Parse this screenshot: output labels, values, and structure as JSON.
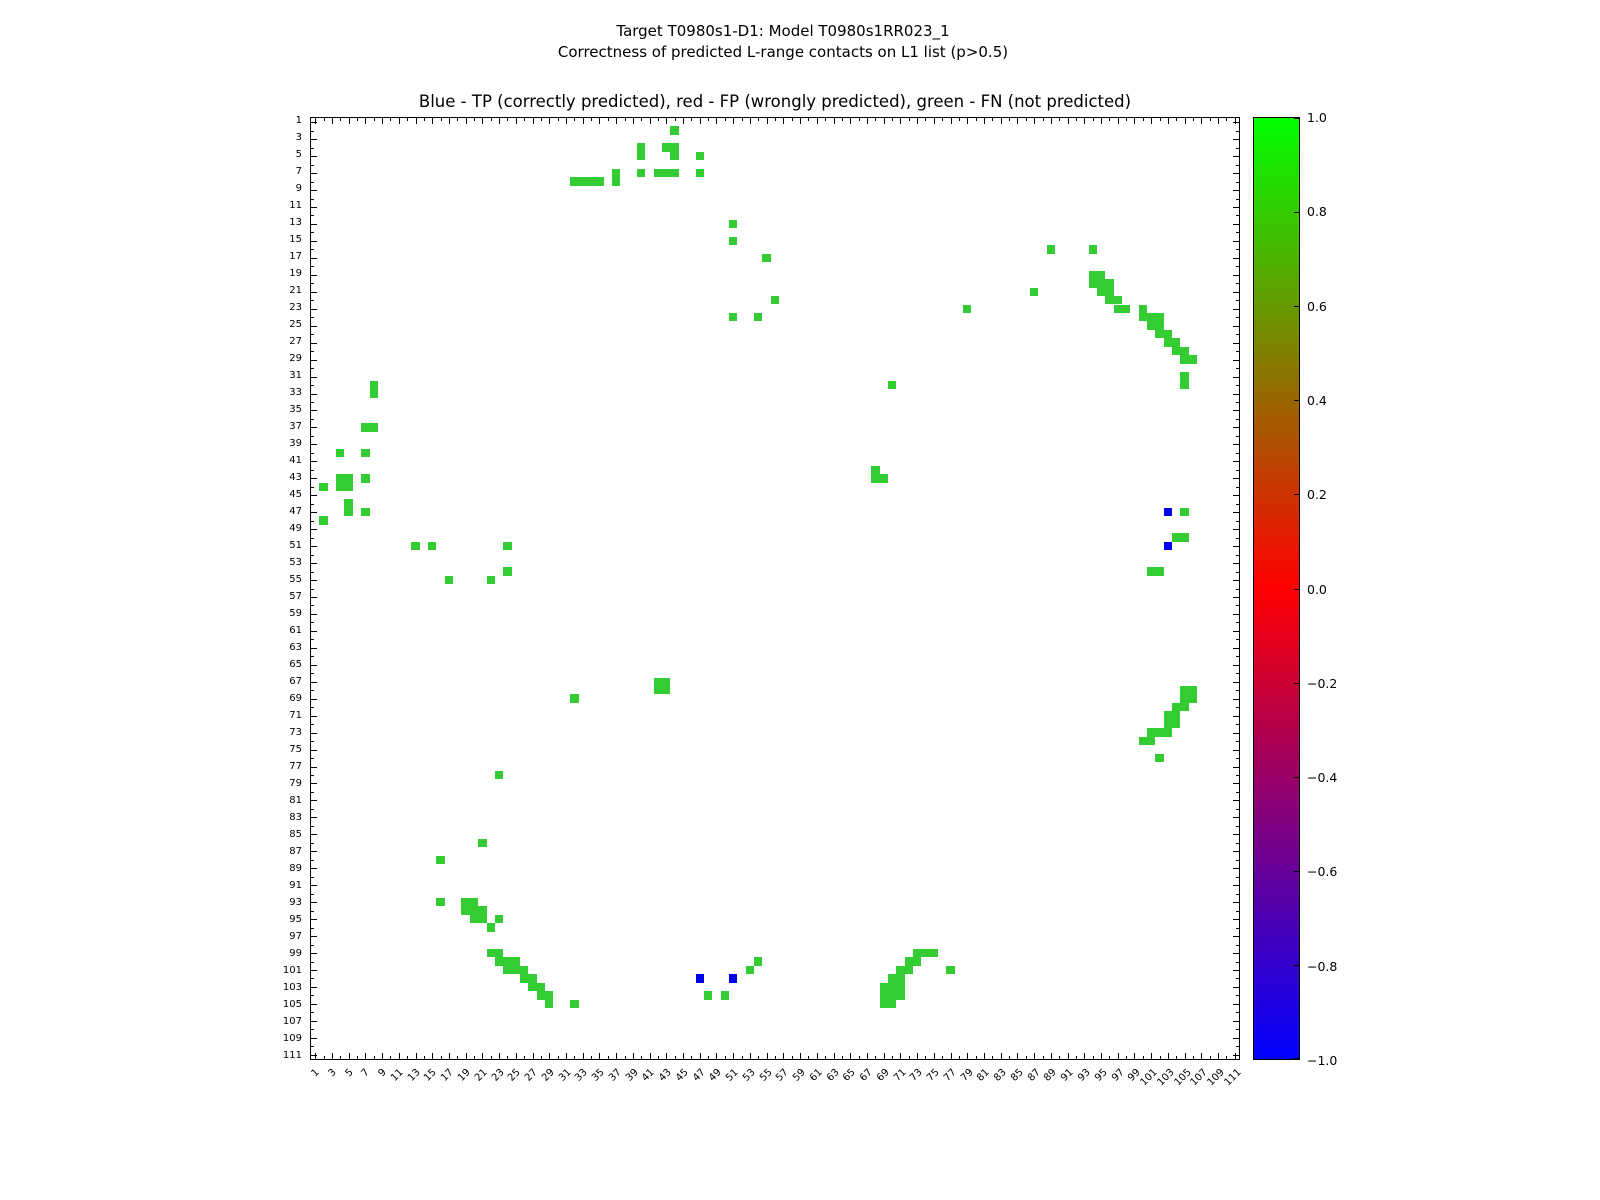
{
  "chart_data": {
    "type": "heatmap",
    "suptitle_line1": "Target T0980s1-D1: Model T0980s1RR023_1",
    "suptitle_line2": "Correctness of predicted L-range contacts on L1 list (p>0.5)",
    "title": "Blue - TP (correctly predicted), red - FP (wrongly predicted), green - FN (not predicted)",
    "x_range": [
      0.5,
      111.5
    ],
    "y_range": [
      0.5,
      111.5
    ],
    "y_axis_inverted": true,
    "grid": false,
    "n_residues": 111,
    "x_ticks": [
      1,
      3,
      5,
      7,
      9,
      11,
      13,
      15,
      17,
      19,
      21,
      23,
      25,
      27,
      29,
      31,
      33,
      35,
      37,
      39,
      41,
      43,
      45,
      47,
      49,
      51,
      53,
      55,
      57,
      59,
      61,
      63,
      65,
      67,
      69,
      71,
      73,
      75,
      77,
      79,
      81,
      83,
      85,
      87,
      89,
      91,
      93,
      95,
      97,
      99,
      101,
      103,
      105,
      107,
      109,
      111
    ],
    "y_ticks": [
      1,
      3,
      5,
      7,
      9,
      11,
      13,
      15,
      17,
      19,
      21,
      23,
      25,
      27,
      29,
      31,
      33,
      35,
      37,
      39,
      41,
      43,
      45,
      47,
      49,
      51,
      53,
      55,
      57,
      59,
      61,
      63,
      65,
      67,
      69,
      71,
      73,
      75,
      77,
      79,
      81,
      83,
      85,
      87,
      89,
      91,
      93,
      95,
      97,
      99,
      101,
      103,
      105,
      107,
      109,
      111
    ],
    "colors": {
      "tp_blue": "#0000ee",
      "fp_red": "#ff0000",
      "fn_green": "#33cc33",
      "background": "#ffffff"
    },
    "colorbar": {
      "min": -1.0,
      "max": 1.0,
      "tick_labels": [
        "1.0",
        "0.8",
        "0.6",
        "0.4",
        "0.2",
        "0.0",
        "−0.2",
        "−0.4",
        "−0.6",
        "−0.8",
        "−1.0"
      ],
      "colormap": "brg",
      "colormap_stops": [
        "#00ff00",
        "#808000",
        "#ff0000",
        "#800080",
        "#0000ff"
      ]
    },
    "cells": {
      "green_fn": [
        [
          44,
          2
        ],
        [
          40,
          4
        ],
        [
          43,
          4
        ],
        [
          44,
          4
        ],
        [
          40,
          5
        ],
        [
          44,
          5
        ],
        [
          47,
          5
        ],
        [
          37,
          7
        ],
        [
          40,
          7
        ],
        [
          42,
          7
        ],
        [
          43,
          7
        ],
        [
          44,
          7
        ],
        [
          47,
          7
        ],
        [
          32,
          8
        ],
        [
          33,
          8
        ],
        [
          34,
          8
        ],
        [
          35,
          8
        ],
        [
          37,
          8
        ],
        [
          51,
          13
        ],
        [
          51,
          15
        ],
        [
          89,
          16
        ],
        [
          94,
          16
        ],
        [
          55,
          17
        ],
        [
          94,
          19
        ],
        [
          95,
          19
        ],
        [
          94,
          20
        ],
        [
          95,
          20
        ],
        [
          96,
          20
        ],
        [
          87,
          21
        ],
        [
          95,
          21
        ],
        [
          96,
          21
        ],
        [
          56,
          22
        ],
        [
          96,
          22
        ],
        [
          97,
          22
        ],
        [
          79,
          23
        ],
        [
          97,
          23
        ],
        [
          98,
          23
        ],
        [
          100,
          23
        ],
        [
          51,
          24
        ],
        [
          54,
          24
        ],
        [
          100,
          24
        ],
        [
          101,
          24
        ],
        [
          102,
          24
        ],
        [
          101,
          25
        ],
        [
          102,
          25
        ],
        [
          102,
          26
        ],
        [
          103,
          26
        ],
        [
          103,
          27
        ],
        [
          104,
          27
        ],
        [
          104,
          28
        ],
        [
          105,
          28
        ],
        [
          105,
          29
        ],
        [
          106,
          29
        ],
        [
          105,
          31
        ],
        [
          8,
          32
        ],
        [
          70,
          32
        ],
        [
          105,
          32
        ],
        [
          8,
          33
        ],
        [
          7,
          37
        ],
        [
          8,
          37
        ],
        [
          4,
          40
        ],
        [
          7,
          40
        ],
        [
          68,
          42
        ],
        [
          4,
          43
        ],
        [
          5,
          43
        ],
        [
          7,
          43
        ],
        [
          68,
          43
        ],
        [
          69,
          43
        ],
        [
          2,
          44
        ],
        [
          4,
          44
        ],
        [
          5,
          44
        ],
        [
          5,
          46
        ],
        [
          5,
          47
        ],
        [
          7,
          47
        ],
        [
          105,
          47
        ],
        [
          2,
          48
        ],
        [
          104,
          50
        ],
        [
          105,
          50
        ],
        [
          13,
          51
        ],
        [
          15,
          51
        ],
        [
          24,
          51
        ],
        [
          24,
          54
        ],
        [
          101,
          54
        ],
        [
          102,
          54
        ],
        [
          17,
          55
        ],
        [
          22,
          55
        ],
        [
          42,
          67
        ],
        [
          43,
          67
        ],
        [
          42,
          68
        ],
        [
          43,
          68
        ],
        [
          105,
          68
        ],
        [
          106,
          68
        ],
        [
          32,
          69
        ],
        [
          105,
          69
        ],
        [
          106,
          69
        ],
        [
          104,
          70
        ],
        [
          105,
          70
        ],
        [
          103,
          71
        ],
        [
          104,
          71
        ],
        [
          103,
          72
        ],
        [
          104,
          72
        ],
        [
          101,
          73
        ],
        [
          102,
          73
        ],
        [
          103,
          73
        ],
        [
          100,
          74
        ],
        [
          101,
          74
        ],
        [
          102,
          76
        ],
        [
          23,
          78
        ],
        [
          21,
          86
        ],
        [
          16,
          88
        ],
        [
          16,
          93
        ],
        [
          19,
          93
        ],
        [
          20,
          93
        ],
        [
          19,
          94
        ],
        [
          20,
          94
        ],
        [
          21,
          94
        ],
        [
          20,
          95
        ],
        [
          21,
          95
        ],
        [
          23,
          95
        ],
        [
          22,
          96
        ],
        [
          22,
          99
        ],
        [
          23,
          99
        ],
        [
          73,
          99
        ],
        [
          74,
          99
        ],
        [
          75,
          99
        ],
        [
          23,
          100
        ],
        [
          24,
          100
        ],
        [
          25,
          100
        ],
        [
          54,
          100
        ],
        [
          72,
          100
        ],
        [
          73,
          100
        ],
        [
          24,
          101
        ],
        [
          25,
          101
        ],
        [
          26,
          101
        ],
        [
          53,
          101
        ],
        [
          71,
          101
        ],
        [
          72,
          101
        ],
        [
          77,
          101
        ],
        [
          26,
          102
        ],
        [
          27,
          102
        ],
        [
          70,
          102
        ],
        [
          71,
          102
        ],
        [
          27,
          103
        ],
        [
          28,
          103
        ],
        [
          69,
          103
        ],
        [
          70,
          103
        ],
        [
          71,
          103
        ],
        [
          28,
          104
        ],
        [
          29,
          104
        ],
        [
          48,
          104
        ],
        [
          50,
          104
        ],
        [
          69,
          104
        ],
        [
          70,
          104
        ],
        [
          71,
          104
        ],
        [
          29,
          105
        ],
        [
          32,
          105
        ],
        [
          69,
          105
        ],
        [
          70,
          105
        ]
      ],
      "blue_tp": [
        [
          103,
          47
        ],
        [
          103,
          51
        ],
        [
          47,
          102
        ],
        [
          51,
          102
        ]
      ],
      "red_fp": []
    }
  }
}
